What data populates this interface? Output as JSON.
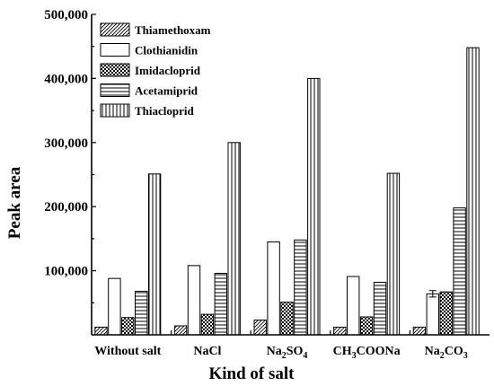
{
  "chart_data": {
    "type": "bar",
    "xlabel": "Kind of salt",
    "ylabel": "Peak area",
    "ylim": [
      0,
      500000
    ],
    "yticks": [
      {
        "value": 100000,
        "label": "100,000"
      },
      {
        "value": 200000,
        "label": "200,000"
      },
      {
        "value": 300000,
        "label": "300,000"
      },
      {
        "value": 400000,
        "label": "400,000"
      },
      {
        "value": 500000,
        "label": "500,000"
      }
    ],
    "categories": [
      {
        "base": "Without salt"
      },
      {
        "base": "NaCl"
      },
      {
        "base": "Na",
        "sub1": "2",
        "mid": "SO",
        "sub2": "4"
      },
      {
        "base": "CH",
        "sub1": "3",
        "mid": "COONa"
      },
      {
        "base": "Na",
        "sub1": "2",
        "mid": "CO",
        "sub2": "3"
      }
    ],
    "legend_position": "top-left",
    "series": [
      {
        "name": "Thiamethoxam",
        "pattern": "diag",
        "values": [
          12000,
          14000,
          23000,
          12000,
          12000
        ]
      },
      {
        "name": "Clothianidin",
        "pattern": "blank",
        "values": [
          88000,
          108000,
          145000,
          91000,
          64000
        ]
      },
      {
        "name": "Imidacloprid",
        "pattern": "check",
        "values": [
          27000,
          32000,
          51000,
          28000,
          67000
        ]
      },
      {
        "name": "Acetamiprid",
        "pattern": "hlines",
        "values": [
          68000,
          96000,
          148000,
          82000,
          198000
        ]
      },
      {
        "name": "Thiacloprid",
        "pattern": "vlines",
        "values": [
          251000,
          300000,
          400000,
          252000,
          448000
        ]
      }
    ],
    "error_bars": [
      {
        "series": 1,
        "category": 4,
        "error": 5000
      }
    ]
  }
}
